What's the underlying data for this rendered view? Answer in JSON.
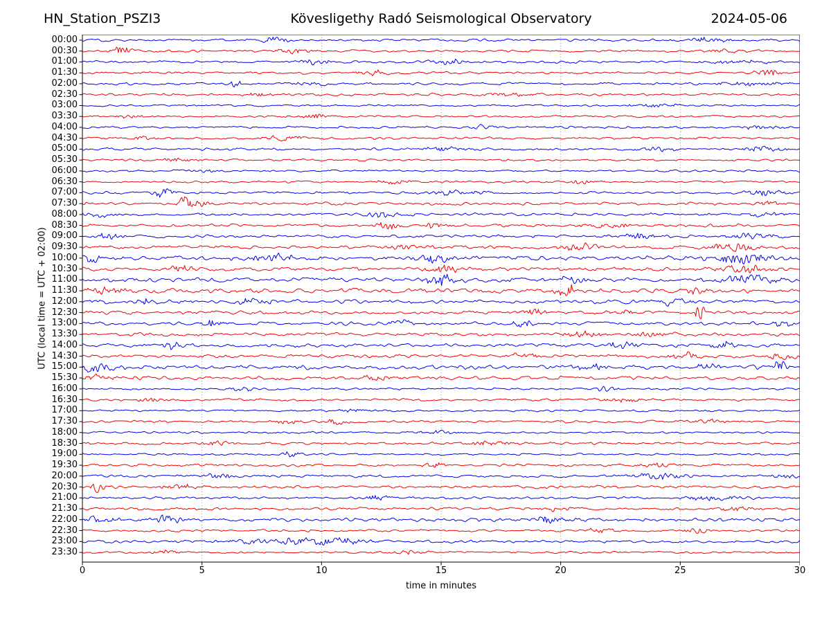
{
  "header": {
    "station": "HN_Station_PSZI3",
    "observatory": "Kövesligethy Radó Seismological Observatory",
    "date": "2024-05-06"
  },
  "axes": {
    "xlabel": "time in minutes",
    "ylabel": "UTC (local time = UTC + 02:00)",
    "xticks": [
      0,
      5,
      10,
      15,
      20,
      25,
      30
    ],
    "xlim": [
      0,
      30
    ],
    "grid_minutes": [
      5,
      10,
      15,
      20,
      25
    ],
    "grid_style": "dotted-vertical"
  },
  "colors": {
    "trace_blue": "#0000ee",
    "trace_red": "#ee0000",
    "grid": "#888888",
    "axis": "#000000",
    "background": "#ffffff"
  },
  "chart_data": {
    "type": "line",
    "subtype": "helicorder-seismogram",
    "x_unit": "minutes",
    "x_range": [
      0,
      30
    ],
    "row_interval_minutes": 30,
    "rows": [
      {
        "label": "00:00",
        "color": "blue",
        "noise": 2.2,
        "events": [
          {
            "t": 8,
            "a": 4,
            "w": 0.5
          },
          {
            "t": 26,
            "a": 3,
            "w": 0.8
          }
        ]
      },
      {
        "label": "00:30",
        "color": "red",
        "noise": 2.2,
        "events": [
          {
            "t": 1.6,
            "a": 6,
            "w": 0.3
          },
          {
            "t": 8.8,
            "a": 4,
            "w": 0.5
          },
          {
            "t": 27,
            "a": 3,
            "w": 0.6
          }
        ]
      },
      {
        "label": "01:00",
        "color": "blue",
        "noise": 2.2,
        "events": [
          {
            "t": 9.8,
            "a": 4,
            "w": 0.4
          },
          {
            "t": 15.3,
            "a": 4,
            "w": 0.5
          },
          {
            "t": 27.5,
            "a": 3,
            "w": 0.8
          }
        ]
      },
      {
        "label": "01:30",
        "color": "red",
        "noise": 2.2,
        "events": [
          {
            "t": 12.2,
            "a": 4,
            "w": 0.5
          },
          {
            "t": 28.6,
            "a": 5,
            "w": 0.4
          }
        ]
      },
      {
        "label": "02:00",
        "color": "blue",
        "noise": 2.2,
        "events": [
          {
            "t": 6.4,
            "a": 7,
            "w": 0.15
          },
          {
            "t": 9.5,
            "a": 3,
            "w": 0.5
          },
          {
            "t": 28,
            "a": 3,
            "w": 1
          }
        ]
      },
      {
        "label": "02:30",
        "color": "red",
        "noise": 2.2,
        "events": [
          {
            "t": 7.4,
            "a": 3,
            "w": 0.5
          },
          {
            "t": 18,
            "a": 2.5,
            "w": 0.8
          }
        ]
      },
      {
        "label": "03:00",
        "color": "blue",
        "noise": 1.8,
        "events": [
          {
            "t": 24,
            "a": 2.5,
            "w": 0.8
          }
        ]
      },
      {
        "label": "03:30",
        "color": "red",
        "noise": 1.9,
        "events": [
          {
            "t": 2,
            "a": 3,
            "w": 0.5
          },
          {
            "t": 9.7,
            "a": 3.5,
            "w": 0.4
          }
        ]
      },
      {
        "label": "04:00",
        "color": "blue",
        "noise": 2.0,
        "events": [
          {
            "t": 16.8,
            "a": 4,
            "w": 0.4
          },
          {
            "t": 28.3,
            "a": 4,
            "w": 0.5
          }
        ]
      },
      {
        "label": "04:30",
        "color": "red",
        "noise": 2.0,
        "events": [
          {
            "t": 2.5,
            "a": 3,
            "w": 0.5
          },
          {
            "t": 8.4,
            "a": 5,
            "w": 0.5
          }
        ]
      },
      {
        "label": "05:00",
        "color": "blue",
        "noise": 2.2,
        "events": [
          {
            "t": 15.2,
            "a": 4,
            "w": 0.6
          },
          {
            "t": 24,
            "a": 3.5,
            "w": 0.6
          },
          {
            "t": 28.5,
            "a": 4,
            "w": 0.6
          }
        ]
      },
      {
        "label": "05:30",
        "color": "red",
        "noise": 1.8,
        "events": [
          {
            "t": 4,
            "a": 2.5,
            "w": 0.6
          }
        ]
      },
      {
        "label": "06:00",
        "color": "blue",
        "noise": 1.8,
        "events": [
          {
            "t": 5,
            "a": 2.5,
            "w": 0.6
          }
        ]
      },
      {
        "label": "06:30",
        "color": "red",
        "noise": 1.9,
        "events": [
          {
            "t": 13,
            "a": 2.5,
            "w": 0.6
          },
          {
            "t": 21,
            "a": 3,
            "w": 0.5
          }
        ]
      },
      {
        "label": "07:00",
        "color": "blue",
        "noise": 2.2,
        "events": [
          {
            "t": 3.4,
            "a": 6,
            "w": 0.3
          },
          {
            "t": 15.6,
            "a": 4,
            "w": 0.8
          },
          {
            "t": 28.6,
            "a": 4,
            "w": 0.6
          }
        ]
      },
      {
        "label": "07:30",
        "color": "red",
        "noise": 2.5,
        "events": [
          {
            "t": 4.3,
            "a": 9,
            "w": 0.2
          },
          {
            "t": 4.8,
            "a": 5,
            "w": 0.4
          },
          {
            "t": 28.8,
            "a": 4,
            "w": 0.4
          }
        ]
      },
      {
        "label": "08:00",
        "color": "blue",
        "noise": 2.6,
        "events": [
          {
            "t": 0.6,
            "a": 4,
            "w": 0.4
          },
          {
            "t": 12.6,
            "a": 4,
            "w": 0.6
          },
          {
            "t": 28.7,
            "a": 4,
            "w": 0.5
          }
        ]
      },
      {
        "label": "08:30",
        "color": "red",
        "noise": 2.6,
        "events": [
          {
            "t": 12.7,
            "a": 5,
            "w": 0.4
          },
          {
            "t": 14.8,
            "a": 4,
            "w": 0.4
          },
          {
            "t": 22,
            "a": 3.5,
            "w": 0.8
          }
        ]
      },
      {
        "label": "09:00",
        "color": "blue",
        "noise": 2.7,
        "events": [
          {
            "t": 1,
            "a": 4,
            "w": 0.5
          },
          {
            "t": 23.2,
            "a": 5,
            "w": 0.5
          },
          {
            "t": 28,
            "a": 4,
            "w": 0.8
          }
        ]
      },
      {
        "label": "09:30",
        "color": "red",
        "noise": 3.0,
        "events": [
          {
            "t": 13.5,
            "a": 4,
            "w": 0.6
          },
          {
            "t": 20.8,
            "a": 6,
            "w": 0.6
          },
          {
            "t": 27.2,
            "a": 6,
            "w": 0.7
          }
        ]
      },
      {
        "label": "10:00",
        "color": "blue",
        "noise": 3.8,
        "events": [
          {
            "t": 0.5,
            "a": 7,
            "w": 0.3
          },
          {
            "t": 8,
            "a": 6,
            "w": 0.7
          },
          {
            "t": 14.8,
            "a": 6,
            "w": 0.5
          },
          {
            "t": 27.6,
            "a": 8,
            "w": 0.8
          }
        ]
      },
      {
        "label": "10:30",
        "color": "red",
        "noise": 3.4,
        "events": [
          {
            "t": 4.2,
            "a": 5,
            "w": 0.4
          },
          {
            "t": 15,
            "a": 6,
            "w": 0.5
          },
          {
            "t": 27.7,
            "a": 7,
            "w": 0.7
          }
        ]
      },
      {
        "label": "11:00",
        "color": "blue",
        "noise": 3.8,
        "events": [
          {
            "t": 14.9,
            "a": 9,
            "w": 0.4
          },
          {
            "t": 20.5,
            "a": 5,
            "w": 0.5
          },
          {
            "t": 28,
            "a": 7,
            "w": 0.8
          }
        ]
      },
      {
        "label": "11:30",
        "color": "red",
        "noise": 4.2,
        "events": [
          {
            "t": 1,
            "a": 6,
            "w": 0.5
          },
          {
            "t": 20.3,
            "a": 8,
            "w": 0.3
          },
          {
            "t": 25.6,
            "a": 5,
            "w": 0.5
          }
        ]
      },
      {
        "label": "12:00",
        "color": "blue",
        "noise": 3.4,
        "events": [
          {
            "t": 2.7,
            "a": 5,
            "w": 0.3
          },
          {
            "t": 7,
            "a": 4,
            "w": 0.6
          },
          {
            "t": 24.6,
            "a": 5,
            "w": 0.5
          }
        ]
      },
      {
        "label": "12:30",
        "color": "red",
        "noise": 3.0,
        "events": [
          {
            "t": 19,
            "a": 6,
            "w": 0.3
          },
          {
            "t": 22.4,
            "a": 4,
            "w": 0.5
          },
          {
            "t": 25.8,
            "a": 11,
            "w": 0.2
          }
        ]
      },
      {
        "label": "13:00",
        "color": "blue",
        "noise": 3.0,
        "events": [
          {
            "t": 5.4,
            "a": 7,
            "w": 0.3
          },
          {
            "t": 13.3,
            "a": 7,
            "w": 0.3
          },
          {
            "t": 18.5,
            "a": 6,
            "w": 0.3
          },
          {
            "t": 29.3,
            "a": 5,
            "w": 0.3
          }
        ]
      },
      {
        "label": "13:30",
        "color": "red",
        "noise": 3.0,
        "events": [
          {
            "t": 21,
            "a": 5,
            "w": 0.6
          },
          {
            "t": 24,
            "a": 4,
            "w": 0.6
          }
        ]
      },
      {
        "label": "14:00",
        "color": "blue",
        "noise": 3.0,
        "events": [
          {
            "t": 3.7,
            "a": 6,
            "w": 0.25
          },
          {
            "t": 22.6,
            "a": 6,
            "w": 0.4
          },
          {
            "t": 26.9,
            "a": 5,
            "w": 0.4
          }
        ]
      },
      {
        "label": "14:30",
        "color": "red",
        "noise": 3.0,
        "events": [
          {
            "t": 18.4,
            "a": 4,
            "w": 0.5
          },
          {
            "t": 25.2,
            "a": 6,
            "w": 0.4
          },
          {
            "t": 29.3,
            "a": 5,
            "w": 0.4
          }
        ]
      },
      {
        "label": "15:00",
        "color": "blue",
        "noise": 3.8,
        "events": [
          {
            "t": 0.6,
            "a": 5,
            "w": 0.5
          },
          {
            "t": 21.2,
            "a": 4,
            "w": 0.6
          },
          {
            "t": 26.2,
            "a": 5,
            "w": 0.4
          },
          {
            "t": 29.2,
            "a": 12,
            "w": 0.2
          }
        ]
      },
      {
        "label": "15:30",
        "color": "red",
        "noise": 3.2,
        "events": [
          {
            "t": 0.6,
            "a": 6,
            "w": 0.5
          },
          {
            "t": 12.5,
            "a": 4,
            "w": 0.6
          }
        ]
      },
      {
        "label": "16:00",
        "color": "blue",
        "noise": 1.9,
        "events": [
          {
            "t": 6.6,
            "a": 3.5,
            "w": 0.4
          },
          {
            "t": 21.8,
            "a": 4,
            "w": 0.4
          }
        ]
      },
      {
        "label": "16:30",
        "color": "red",
        "noise": 2.2,
        "events": [
          {
            "t": 3,
            "a": 4,
            "w": 0.5
          },
          {
            "t": 22.5,
            "a": 3,
            "w": 0.6
          }
        ]
      },
      {
        "label": "17:00",
        "color": "blue",
        "noise": 1.8,
        "events": [
          {
            "t": 11.5,
            "a": 2.5,
            "w": 0.6
          }
        ]
      },
      {
        "label": "17:30",
        "color": "red",
        "noise": 2.2,
        "events": [
          {
            "t": 8.6,
            "a": 4,
            "w": 0.4
          },
          {
            "t": 10.6,
            "a": 3.5,
            "w": 0.4
          },
          {
            "t": 26,
            "a": 3,
            "w": 0.6
          }
        ]
      },
      {
        "label": "18:00",
        "color": "blue",
        "noise": 1.8,
        "events": [
          {
            "t": 15,
            "a": 2.5,
            "w": 0.8
          }
        ]
      },
      {
        "label": "18:30",
        "color": "red",
        "noise": 2.2,
        "events": [
          {
            "t": 5.5,
            "a": 3,
            "w": 0.6
          },
          {
            "t": 17,
            "a": 3,
            "w": 0.8
          }
        ]
      },
      {
        "label": "19:00",
        "color": "blue",
        "noise": 1.8,
        "events": [
          {
            "t": 8.7,
            "a": 6,
            "w": 0.2
          }
        ]
      },
      {
        "label": "19:30",
        "color": "red",
        "noise": 2.2,
        "events": [
          {
            "t": 14.8,
            "a": 4,
            "w": 0.4
          },
          {
            "t": 24,
            "a": 3,
            "w": 0.6
          }
        ]
      },
      {
        "label": "20:00",
        "color": "blue",
        "noise": 2.5,
        "events": [
          {
            "t": 5.6,
            "a": 4,
            "w": 0.5
          },
          {
            "t": 24,
            "a": 5,
            "w": 0.7
          },
          {
            "t": 29.5,
            "a": 4,
            "w": 0.4
          }
        ]
      },
      {
        "label": "20:30",
        "color": "red",
        "noise": 2.5,
        "events": [
          {
            "t": 0.7,
            "a": 8,
            "w": 0.25
          },
          {
            "t": 4,
            "a": 4,
            "w": 0.6
          }
        ]
      },
      {
        "label": "21:00",
        "color": "blue",
        "noise": 2.2,
        "events": [
          {
            "t": 12.3,
            "a": 6,
            "w": 0.3
          },
          {
            "t": 26.5,
            "a": 4,
            "w": 0.8
          }
        ]
      },
      {
        "label": "21:30",
        "color": "red",
        "noise": 2.4,
        "events": [
          {
            "t": 20,
            "a": 4,
            "w": 0.6
          },
          {
            "t": 27.5,
            "a": 3.5,
            "w": 0.6
          }
        ]
      },
      {
        "label": "22:00",
        "color": "blue",
        "noise": 3.2,
        "events": [
          {
            "t": 0.8,
            "a": 5,
            "w": 0.5
          },
          {
            "t": 3.6,
            "a": 6,
            "w": 0.5
          },
          {
            "t": 19.6,
            "a": 5,
            "w": 0.6
          }
        ]
      },
      {
        "label": "22:30",
        "color": "red",
        "noise": 2.2,
        "events": [
          {
            "t": 21.6,
            "a": 4,
            "w": 0.5
          },
          {
            "t": 25.6,
            "a": 5,
            "w": 0.4
          }
        ]
      },
      {
        "label": "23:00",
        "color": "blue",
        "noise": 2.6,
        "events": [
          {
            "t": 8.5,
            "a": 5,
            "w": 1.5
          },
          {
            "t": 11,
            "a": 4,
            "w": 0.8
          }
        ]
      },
      {
        "label": "23:30",
        "color": "red",
        "noise": 2.0,
        "events": [
          {
            "t": 3.5,
            "a": 2.5,
            "w": 0.5
          },
          {
            "t": 13.6,
            "a": 3,
            "w": 0.5
          }
        ]
      }
    ]
  }
}
